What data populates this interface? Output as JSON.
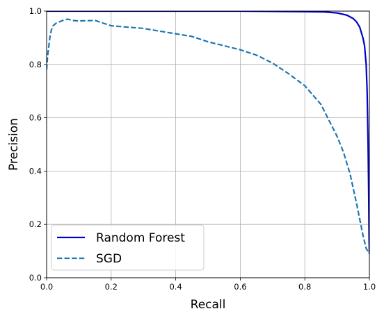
{
  "chart_data": {
    "type": "line",
    "xlabel": "Recall",
    "ylabel": "Precision",
    "xlim": [
      0,
      1
    ],
    "ylim": [
      0,
      1
    ],
    "xticks": [
      "0.0",
      "0.2",
      "0.4",
      "0.6",
      "0.8",
      "1.0"
    ],
    "yticks": [
      "0.0",
      "0.2",
      "0.4",
      "0.6",
      "0.8",
      "1.0"
    ],
    "grid": true,
    "legend_position": "lower-left",
    "series": [
      {
        "name": "Random Forest",
        "color": "#0000cc",
        "line_style": "solid",
        "x": [
          0.0,
          0.1,
          0.3,
          0.5,
          0.6,
          0.7,
          0.8,
          0.86,
          0.9,
          0.93,
          0.95,
          0.96,
          0.97,
          0.98,
          0.985,
          0.99,
          0.993,
          0.996,
          0.998,
          0.999,
          1.0
        ],
        "y": [
          1.0,
          1.0,
          1.0,
          1.0,
          1.0,
          0.999,
          0.998,
          0.997,
          0.993,
          0.985,
          0.972,
          0.96,
          0.94,
          0.9,
          0.87,
          0.8,
          0.7,
          0.5,
          0.3,
          0.15,
          0.09
        ]
      },
      {
        "name": "SGD",
        "color": "#1f77b4",
        "line_style": "dashed",
        "x": [
          0.0,
          0.003,
          0.006,
          0.01,
          0.015,
          0.02,
          0.03,
          0.05,
          0.065,
          0.08,
          0.1,
          0.15,
          0.2,
          0.3,
          0.4,
          0.45,
          0.5,
          0.6,
          0.65,
          0.7,
          0.75,
          0.8,
          0.85,
          0.9,
          0.92,
          0.94,
          0.96,
          0.97,
          0.98,
          0.99,
          1.0
        ],
        "y": [
          0.78,
          0.83,
          0.86,
          0.9,
          0.93,
          0.945,
          0.955,
          0.965,
          0.97,
          0.965,
          0.963,
          0.965,
          0.945,
          0.935,
          0.915,
          0.905,
          0.885,
          0.855,
          0.835,
          0.805,
          0.765,
          0.72,
          0.65,
          0.53,
          0.47,
          0.39,
          0.28,
          0.22,
          0.16,
          0.11,
          0.09
        ]
      }
    ]
  }
}
